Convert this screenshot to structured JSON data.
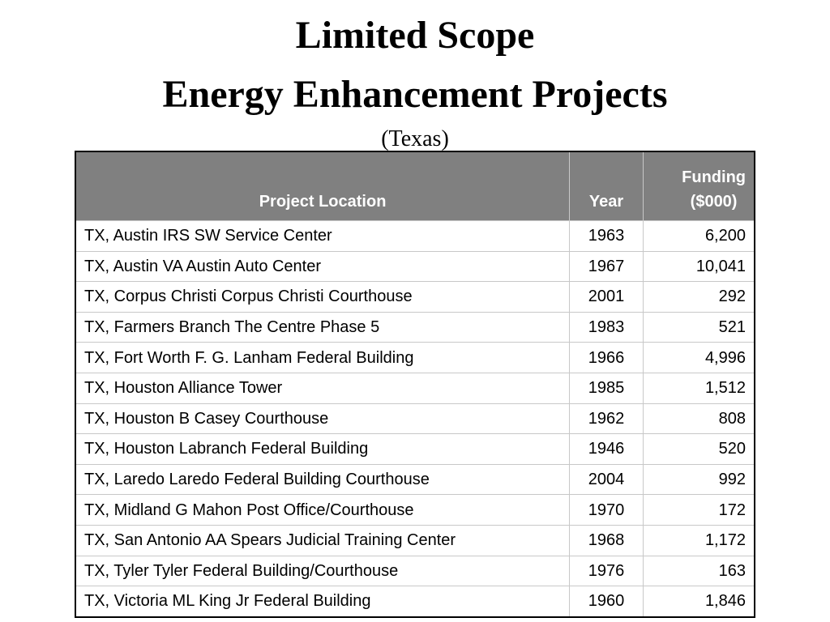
{
  "title": {
    "line1": "Limited Scope",
    "line2": "Energy Enhancement Projects",
    "subtitle": "(Texas)"
  },
  "table": {
    "headers": {
      "location": "Project Location",
      "year": "Year",
      "funding_line1": "Funding",
      "funding_line2": "($000)"
    },
    "rows": [
      {
        "location": "TX, Austin IRS SW Service Center",
        "year": "1963",
        "funding": "6,200"
      },
      {
        "location": "TX, Austin VA Austin Auto Center",
        "year": "1967",
        "funding": "10,041"
      },
      {
        "location": "TX, Corpus Christi Corpus Christi Courthouse",
        "year": "2001",
        "funding": "292"
      },
      {
        "location": "TX, Farmers Branch The Centre Phase 5",
        "year": "1983",
        "funding": "521"
      },
      {
        "location": "TX, Fort Worth F. G. Lanham Federal Building",
        "year": "1966",
        "funding": "4,996"
      },
      {
        "location": "TX, Houston Alliance Tower",
        "year": "1985",
        "funding": "1,512"
      },
      {
        "location": "TX, Houston B Casey Courthouse",
        "year": "1962",
        "funding": "808"
      },
      {
        "location": "TX, Houston Labranch Federal Building",
        "year": "1946",
        "funding": "520"
      },
      {
        "location": "TX, Laredo Laredo Federal Building Courthouse",
        "year": "2004",
        "funding": "992"
      },
      {
        "location": "TX, Midland G Mahon Post Office/Courthouse",
        "year": "1970",
        "funding": "172"
      },
      {
        "location": "TX, San Antonio AA Spears Judicial Training Center",
        "year": "1968",
        "funding": "1,172"
      },
      {
        "location": "TX, Tyler Tyler Federal Building/Courthouse",
        "year": "1976",
        "funding": "163"
      },
      {
        "location": "TX, Victoria ML King Jr Federal Building",
        "year": "1960",
        "funding": "1,846"
      }
    ]
  }
}
